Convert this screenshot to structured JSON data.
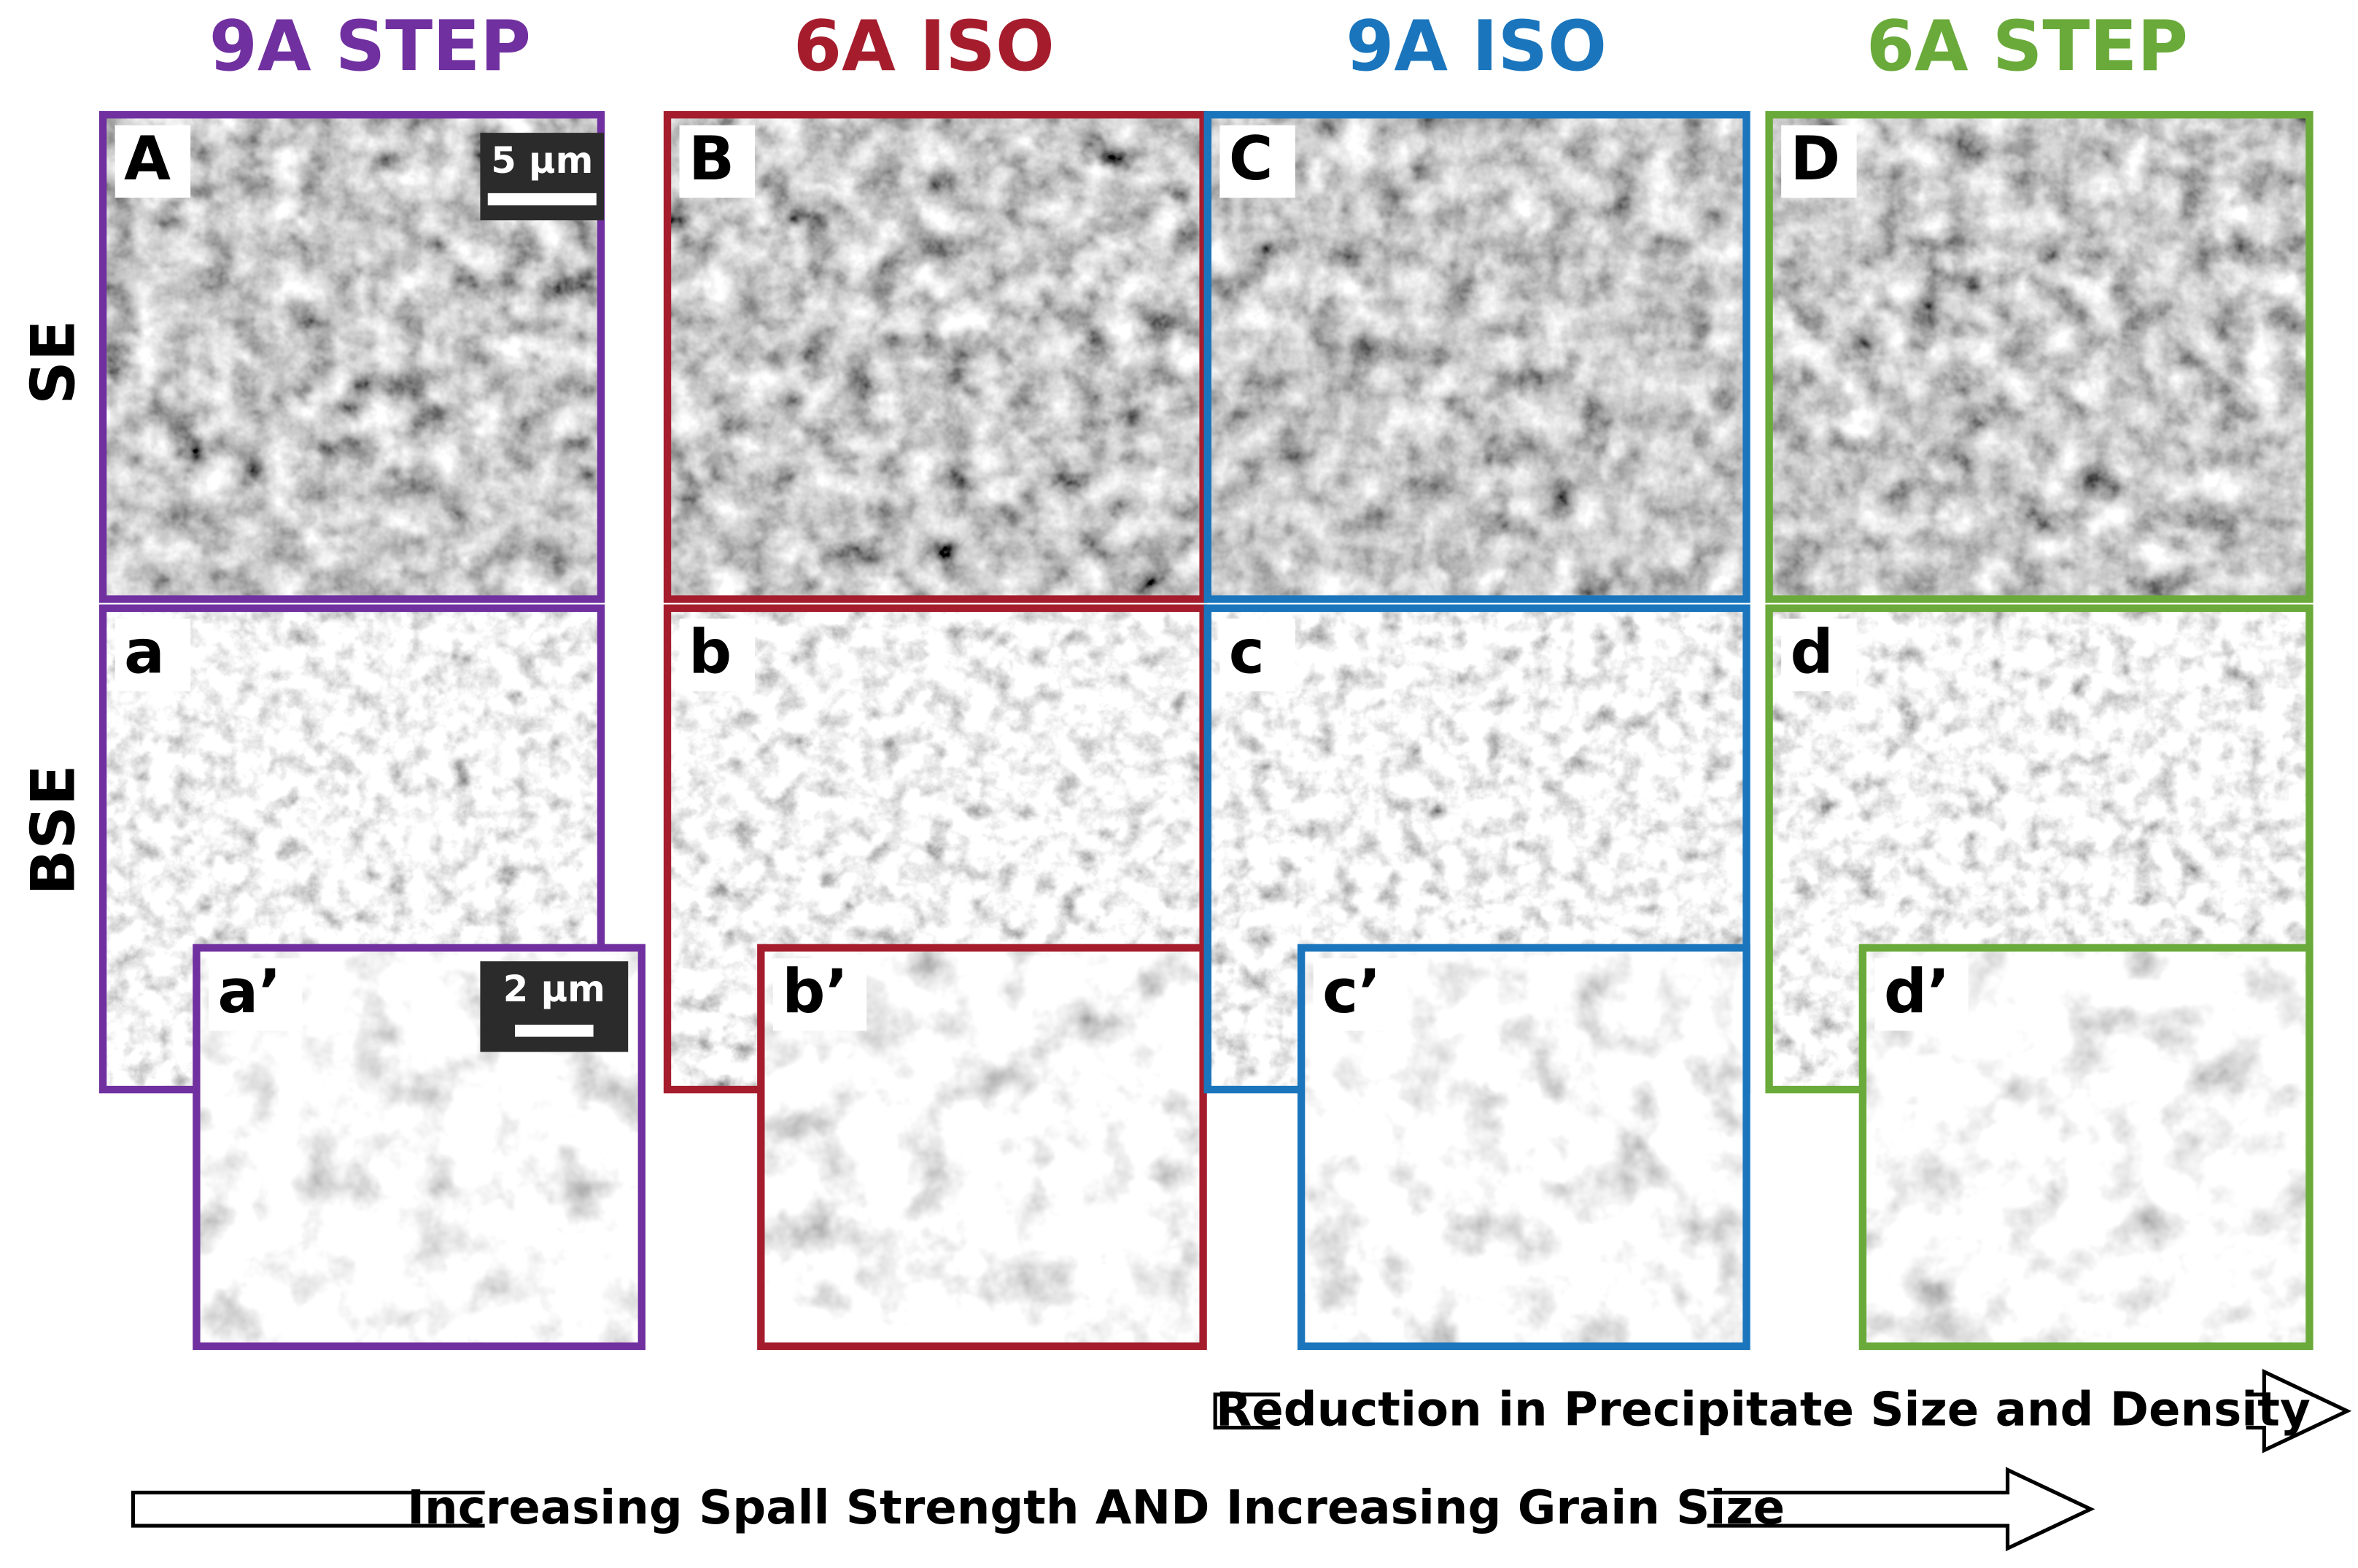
{
  "columns": [
    {
      "title": "9A STEP",
      "color": "#7030a0",
      "se_label": "A",
      "bse_label": "a",
      "inset_label": "a’"
    },
    {
      "title": "6A ISO",
      "color": "#a51d2d",
      "se_label": "B",
      "bse_label": "b",
      "inset_label": "b’"
    },
    {
      "title": "9A ISO",
      "color": "#1a75bc",
      "se_label": "C",
      "bse_label": "c",
      "inset_label": "c’"
    },
    {
      "title": "6A STEP",
      "color": "#6aaa3a",
      "se_label": "D",
      "bse_label": "d",
      "inset_label": "d’"
    }
  ],
  "rows": [
    "SE",
    "BSE"
  ],
  "scale_bars": [
    "5 µm",
    "2 µm"
  ],
  "arrows": [
    "Reduction in Precipitate Size and Density",
    "Increasing Spall Strength AND Increasing Grain Size"
  ]
}
